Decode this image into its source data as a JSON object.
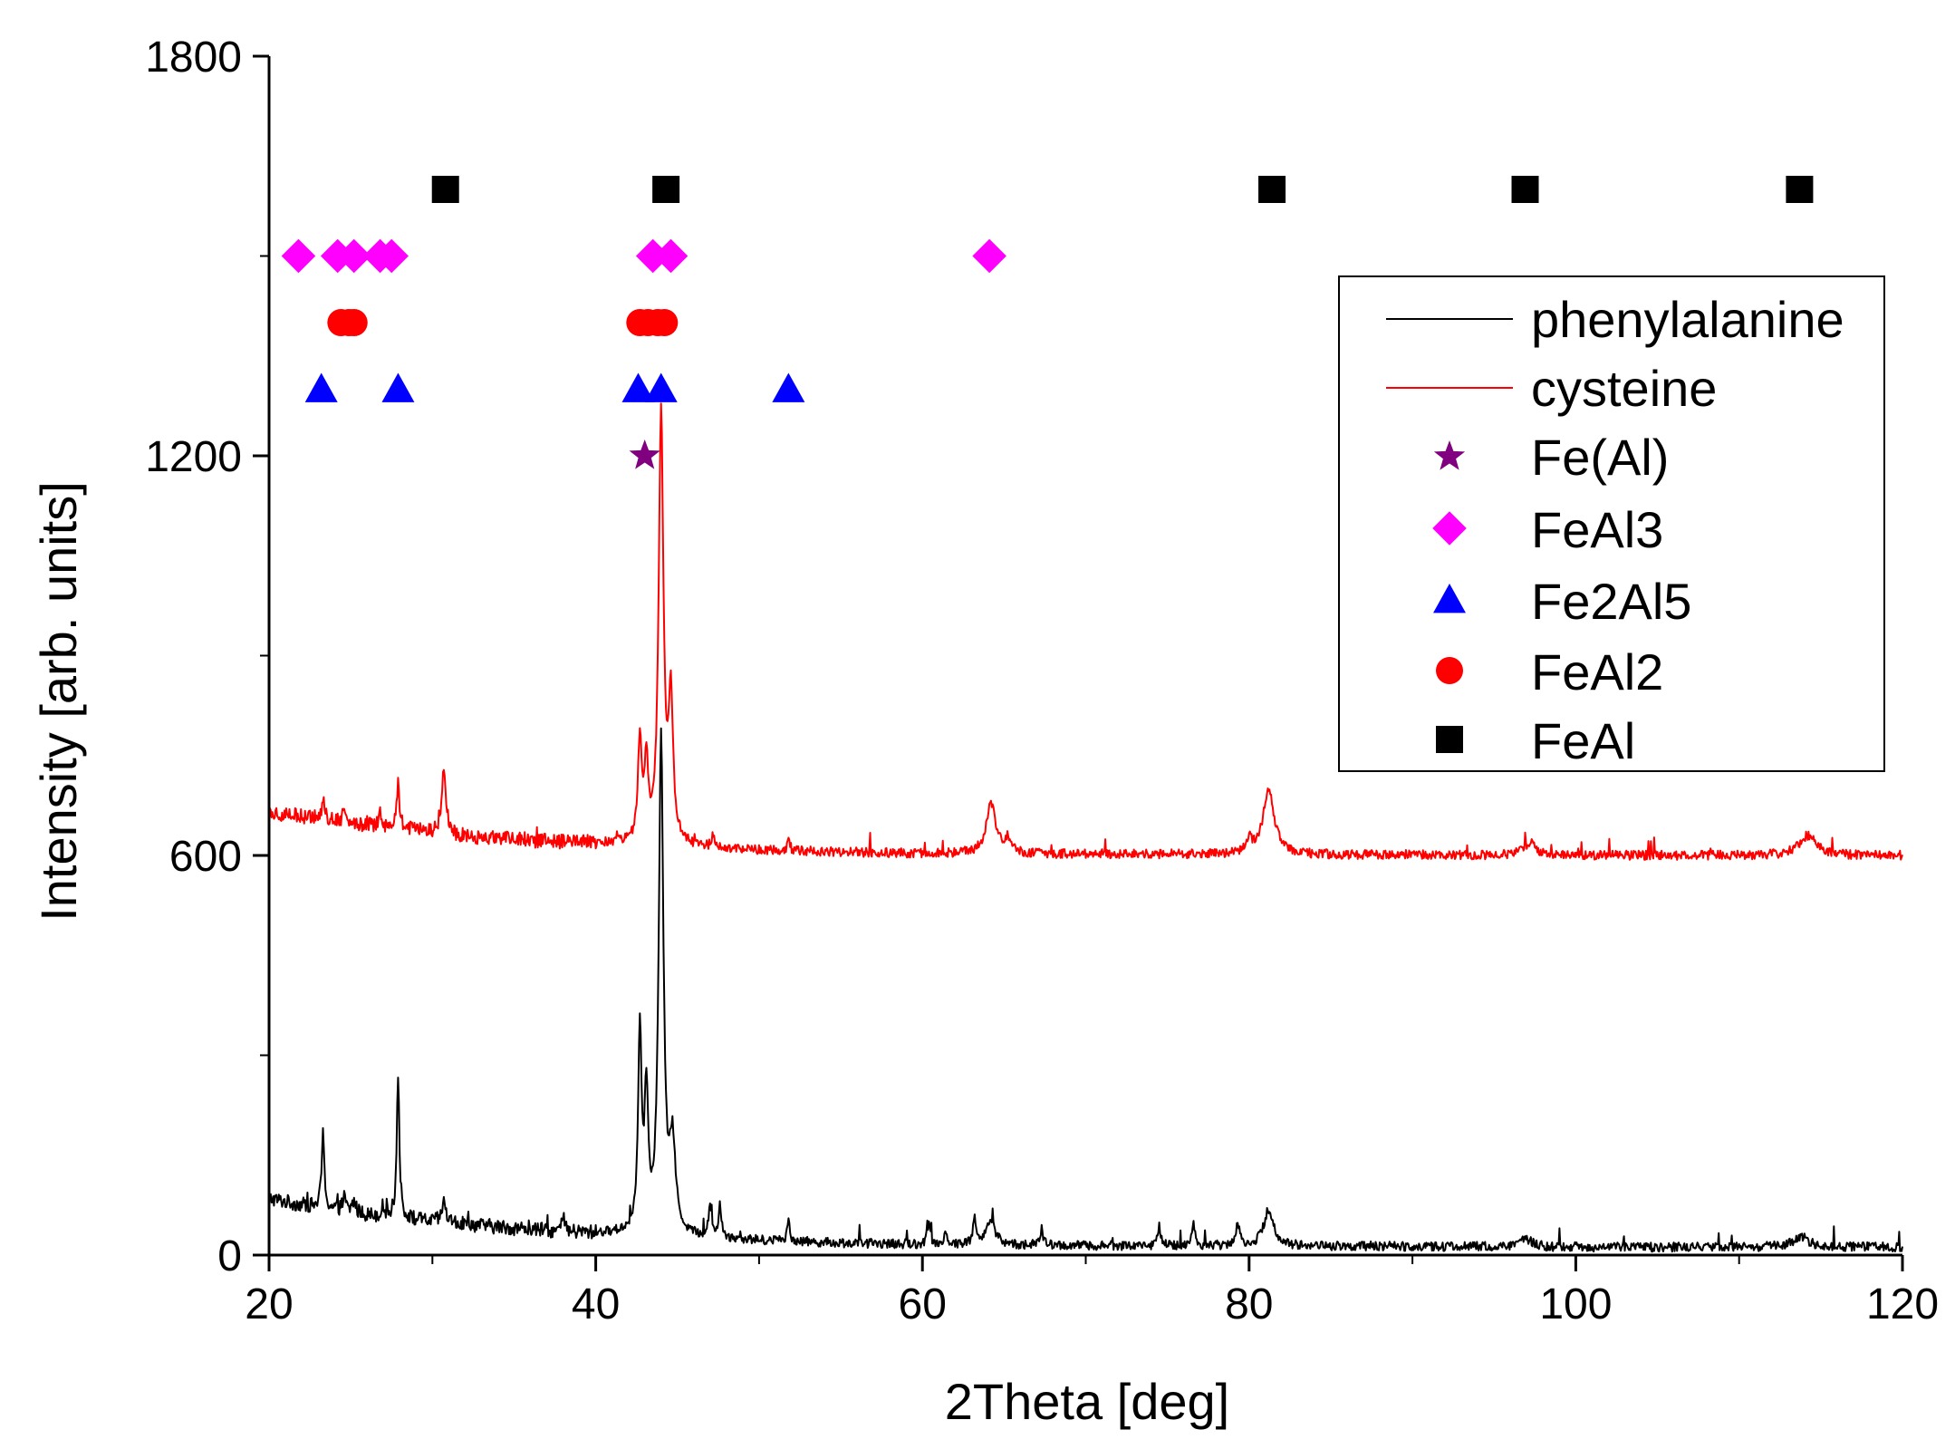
{
  "chart_data": {
    "type": "line",
    "title": "",
    "xlabel": "2Theta [deg]",
    "ylabel": "Intensity [arb. units]",
    "xlim": [
      20,
      120
    ],
    "ylim": [
      0,
      1800
    ],
    "x_ticks": [
      20,
      40,
      60,
      80,
      100,
      120
    ],
    "x_tick_labels": [
      "20",
      "40",
      "60",
      "80",
      "100",
      "120"
    ],
    "x_minor_step": 10,
    "y_ticks": [
      0,
      600,
      1200,
      1800
    ],
    "y_tick_labels": [
      "0",
      "600",
      "1200",
      "1800"
    ],
    "y_minor_step": 300,
    "grid": false,
    "legend_position": "top-right",
    "series": [
      {
        "name": "phenylalanine",
        "kind": "line",
        "color": "#000000",
        "baseline": [
          [
            20,
            85
          ],
          [
            22,
            75
          ],
          [
            24,
            68
          ],
          [
            26,
            60
          ],
          [
            28,
            55
          ],
          [
            30,
            50
          ],
          [
            32,
            46
          ],
          [
            34,
            42
          ],
          [
            36,
            38
          ],
          [
            38,
            34
          ],
          [
            40,
            32
          ],
          [
            42,
            32
          ],
          [
            46,
            26
          ],
          [
            50,
            22
          ],
          [
            55,
            18
          ],
          [
            60,
            16
          ],
          [
            70,
            14
          ],
          [
            80,
            14
          ],
          [
            90,
            13
          ],
          [
            100,
            12
          ],
          [
            110,
            12
          ],
          [
            120,
            12
          ]
        ],
        "peaks": [
          {
            "x": 23.3,
            "height": 110,
            "width": 0.1
          },
          {
            "x": 27.9,
            "height": 210,
            "width": 0.1
          },
          {
            "x": 24.6,
            "height": 20,
            "width": 0.12
          },
          {
            "x": 25.2,
            "height": 18,
            "width": 0.12
          },
          {
            "x": 27.0,
            "height": 15,
            "width": 0.12
          },
          {
            "x": 30.7,
            "height": 30,
            "width": 0.15
          },
          {
            "x": 38.0,
            "height": 22,
            "width": 0.1
          },
          {
            "x": 42.7,
            "height": 300,
            "width": 0.13
          },
          {
            "x": 43.1,
            "height": 200,
            "width": 0.13
          },
          {
            "x": 44.0,
            "height": 738,
            "width": 0.17
          },
          {
            "x": 44.7,
            "height": 130,
            "width": 0.22
          },
          {
            "x": 47.0,
            "height": 50,
            "width": 0.1
          },
          {
            "x": 47.6,
            "height": 50,
            "width": 0.1
          },
          {
            "x": 51.8,
            "height": 30,
            "width": 0.1
          },
          {
            "x": 60.4,
            "height": 30,
            "width": 0.1
          },
          {
            "x": 61.4,
            "height": 20,
            "width": 0.1
          },
          {
            "x": 63.2,
            "height": 40,
            "width": 0.12
          },
          {
            "x": 64.2,
            "height": 38,
            "width": 0.3
          },
          {
            "x": 67.3,
            "height": 25,
            "width": 0.1
          },
          {
            "x": 74.5,
            "height": 30,
            "width": 0.1
          },
          {
            "x": 76.6,
            "height": 35,
            "width": 0.1
          },
          {
            "x": 79.3,
            "height": 35,
            "width": 0.14
          },
          {
            "x": 81.2,
            "height": 55,
            "width": 0.35
          },
          {
            "x": 97.0,
            "height": 12,
            "width": 0.4
          },
          {
            "x": 113.8,
            "height": 15,
            "width": 0.6
          }
        ]
      },
      {
        "name": "cysteine",
        "kind": "line",
        "color": "#ff0000",
        "baseline": [
          [
            20,
            665
          ],
          [
            22,
            658
          ],
          [
            24,
            652
          ],
          [
            26,
            645
          ],
          [
            28,
            640
          ],
          [
            30,
            634
          ],
          [
            32,
            628
          ],
          [
            36,
            622
          ],
          [
            40,
            618
          ],
          [
            42,
            617
          ],
          [
            46,
            612
          ],
          [
            50,
            608
          ],
          [
            55,
            605
          ],
          [
            60,
            603
          ],
          [
            70,
            602
          ],
          [
            80,
            601
          ],
          [
            90,
            601
          ],
          [
            100,
            600
          ],
          [
            110,
            600
          ],
          [
            120,
            600
          ]
        ],
        "peaks": [
          {
            "x": 23.3,
            "height": 30,
            "width": 0.1
          },
          {
            "x": 24.6,
            "height": 25,
            "width": 0.1
          },
          {
            "x": 26.8,
            "height": 25,
            "width": 0.1
          },
          {
            "x": 27.9,
            "height": 70,
            "width": 0.1
          },
          {
            "x": 30.7,
            "height": 100,
            "width": 0.15
          },
          {
            "x": 42.7,
            "height": 150,
            "width": 0.14
          },
          {
            "x": 43.1,
            "height": 110,
            "width": 0.14
          },
          {
            "x": 44.0,
            "height": 645,
            "width": 0.17
          },
          {
            "x": 44.6,
            "height": 210,
            "width": 0.16
          },
          {
            "x": 47.2,
            "height": 20,
            "width": 0.1
          },
          {
            "x": 51.8,
            "height": 15,
            "width": 0.1
          },
          {
            "x": 64.2,
            "height": 75,
            "width": 0.35
          },
          {
            "x": 65.2,
            "height": 20,
            "width": 0.2
          },
          {
            "x": 80.0,
            "height": 20,
            "width": 0.2
          },
          {
            "x": 81.2,
            "height": 100,
            "width": 0.4
          },
          {
            "x": 97.2,
            "height": 20,
            "width": 0.4
          },
          {
            "x": 114.2,
            "height": 30,
            "width": 0.6
          }
        ]
      },
      {
        "name": "Fe(Al)",
        "kind": "marker",
        "marker": "star",
        "color": "#800080",
        "points": [
          [
            43.0,
            1200
          ]
        ]
      },
      {
        "name": "FeAl3",
        "kind": "marker",
        "marker": "diamond",
        "color": "#ff00ff",
        "points": [
          [
            21.8,
            1500
          ],
          [
            24.2,
            1500
          ],
          [
            25.2,
            1500
          ],
          [
            26.8,
            1500
          ],
          [
            27.5,
            1500
          ],
          [
            43.5,
            1500
          ],
          [
            44.6,
            1500
          ],
          [
            64.1,
            1500
          ]
        ]
      },
      {
        "name": "Fe2Al5",
        "kind": "marker",
        "marker": "triangle",
        "color": "#0000ff",
        "points": [
          [
            23.2,
            1300
          ],
          [
            27.9,
            1300
          ],
          [
            42.6,
            1300
          ],
          [
            44.0,
            1300
          ],
          [
            51.8,
            1300
          ]
        ]
      },
      {
        "name": "FeAl2",
        "kind": "marker",
        "marker": "circle",
        "color": "#ff0000",
        "points": [
          [
            24.4,
            1400
          ],
          [
            24.9,
            1400
          ],
          [
            25.2,
            1400
          ],
          [
            42.7,
            1400
          ],
          [
            43.2,
            1400
          ],
          [
            43.8,
            1400
          ],
          [
            44.2,
            1400
          ]
        ]
      },
      {
        "name": "FeAl",
        "kind": "marker",
        "marker": "square",
        "color": "#000000",
        "points": [
          [
            30.8,
            1600
          ],
          [
            44.3,
            1600
          ],
          [
            81.4,
            1600
          ],
          [
            96.9,
            1600
          ],
          [
            113.7,
            1600
          ]
        ]
      }
    ]
  }
}
